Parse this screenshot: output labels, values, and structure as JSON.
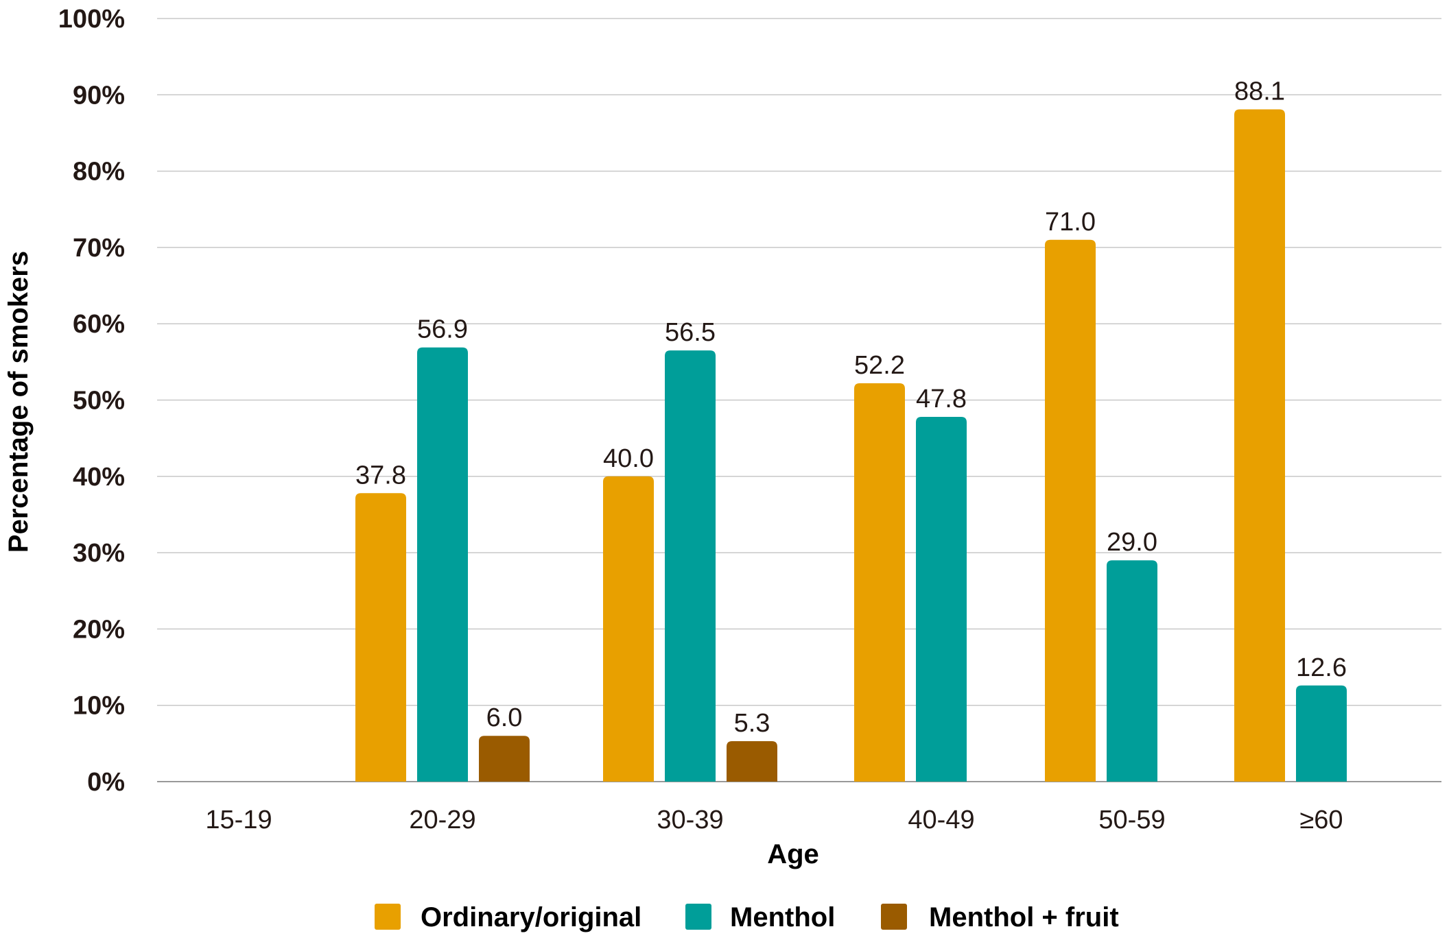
{
  "chart_data": {
    "type": "bar",
    "xlabel": "Age",
    "ylabel": "Percentage of smokers",
    "ylim": [
      0,
      100
    ],
    "yticks": [
      "0%",
      "10%",
      "20%",
      "30%",
      "40%",
      "50%",
      "60%",
      "70%",
      "80%",
      "90%",
      "100%"
    ],
    "grid": true,
    "legend_position": "bottom",
    "categories": [
      "15-19",
      "20-29",
      "30-39",
      "40-49",
      "50-59",
      "≥60"
    ],
    "series": [
      {
        "name": "Ordinary/original",
        "color": "#E8A000",
        "values": [
          null,
          37.8,
          40.0,
          52.2,
          71.0,
          88.1
        ],
        "labels": [
          "",
          "37.8",
          "40.0",
          "52.2",
          "71.0",
          "88.1"
        ]
      },
      {
        "name": "Menthol",
        "color": "#009E99",
        "values": [
          null,
          56.9,
          56.5,
          47.8,
          29.0,
          12.6
        ],
        "labels": [
          "",
          "56.9",
          "56.5",
          "47.8",
          "29.0",
          "12.6"
        ]
      },
      {
        "name": "Menthol + fruit",
        "color": "#9A5B00",
        "values": [
          null,
          6.0,
          5.3,
          null,
          null,
          null
        ],
        "labels": [
          "",
          "6.0",
          "5.3",
          "",
          "",
          ""
        ]
      }
    ]
  }
}
